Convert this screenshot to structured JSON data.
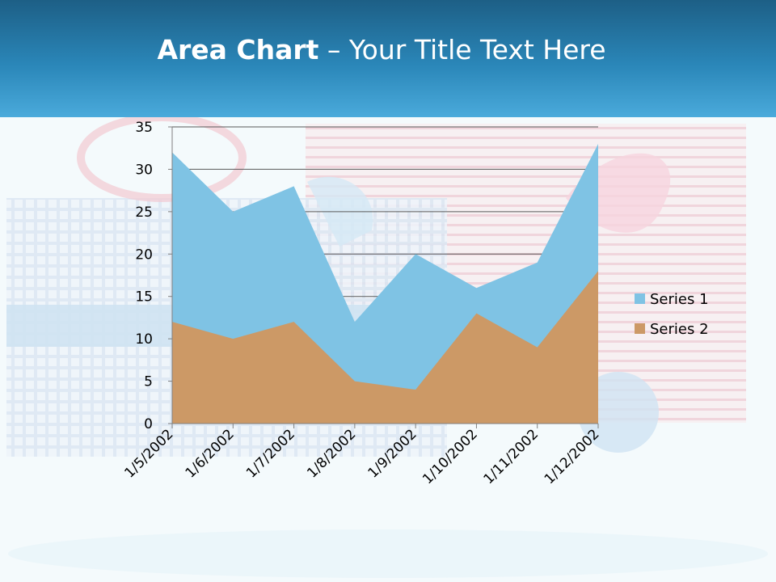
{
  "slide": {
    "title_bold": "Area Chart",
    "title_rest": " – Your Title Text Here"
  },
  "chart_data": {
    "type": "area",
    "categories": [
      "1/5/2002",
      "1/6/2002",
      "1/7/2002",
      "1/8/2002",
      "1/9/2002",
      "1/10/2002",
      "1/11/2002",
      "1/12/2002"
    ],
    "series": [
      {
        "name": "Series 1",
        "values": [
          32,
          25,
          28,
          12,
          20,
          16,
          19,
          33
        ],
        "color": "#7fc3e4"
      },
      {
        "name": "Series 2",
        "values": [
          12,
          10,
          12,
          5,
          4,
          13,
          9,
          18
        ],
        "color": "#cc9966"
      }
    ],
    "ylim": [
      0,
      35
    ],
    "yticks": [
      0,
      5,
      10,
      15,
      20,
      25,
      30,
      35
    ],
    "grid": true,
    "legend": "right",
    "stacked": false,
    "xlabel": "",
    "ylabel": ""
  },
  "colors": {
    "header_dark": "#1d5f86",
    "header_light": "#4aaadb",
    "gridline": "#595959"
  }
}
